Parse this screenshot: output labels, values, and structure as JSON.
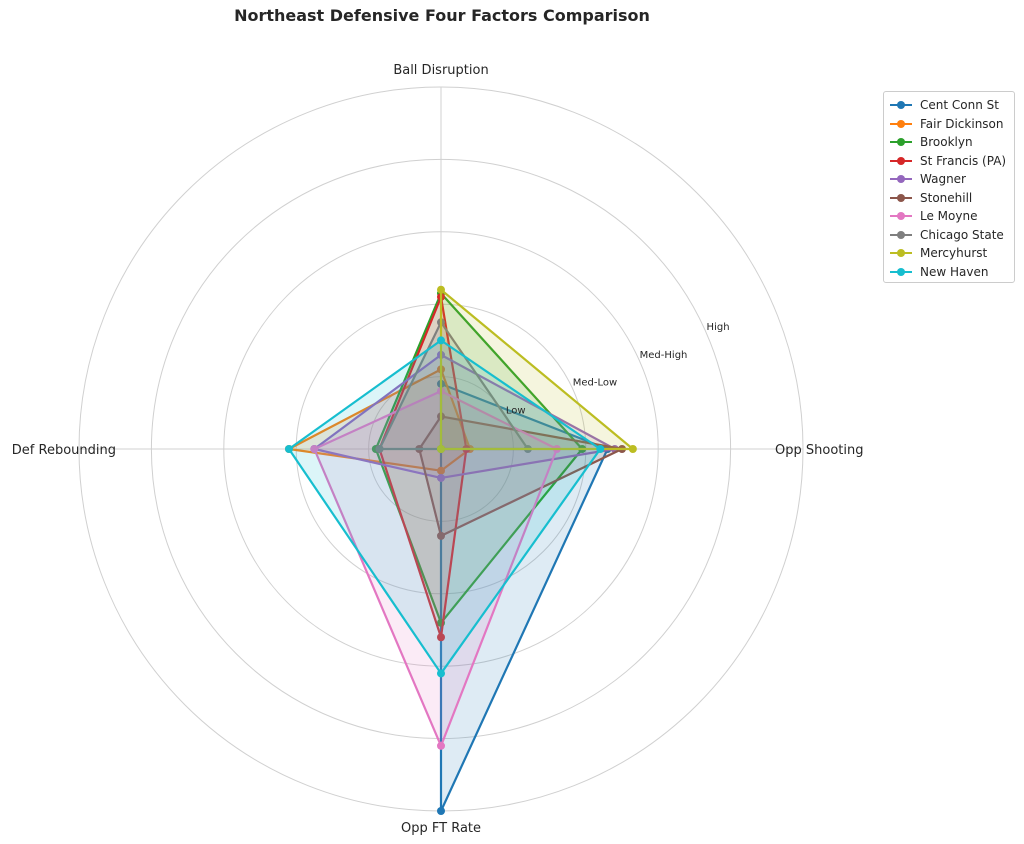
{
  "chart_data": {
    "type": "radar",
    "title": "Northeast Defensive Four Factors Comparison",
    "axes": [
      "Ball Disruption",
      "Opp Shooting",
      "Opp FT Rate",
      "Def Rebounding"
    ],
    "rmax": 5,
    "rings": [
      1,
      2,
      3,
      4,
      5
    ],
    "ring_labels": [
      "Low",
      "Med-Low",
      "Med-High",
      "High"
    ],
    "ring_label_values": [
      1,
      2,
      3,
      4
    ],
    "grid": true,
    "legend_position": "upper-right outside",
    "series": [
      {
        "name": "Cent Conn St",
        "color": "#1f77b4",
        "values": [
          0.9,
          2.3,
          5.0,
          0.0
        ]
      },
      {
        "name": "Fair Dickinson",
        "color": "#ff7f0e",
        "values": [
          1.1,
          0.4,
          0.3,
          2.1
        ]
      },
      {
        "name": "Brooklyn",
        "color": "#2ca02c",
        "values": [
          2.15,
          1.95,
          2.4,
          0.9
        ]
      },
      {
        "name": "St Francis (PA)",
        "color": "#d62728",
        "values": [
          2.1,
          0.35,
          2.6,
          0.85
        ]
      },
      {
        "name": "Wagner",
        "color": "#9467bd",
        "values": [
          1.3,
          2.4,
          0.4,
          1.75
        ]
      },
      {
        "name": "Stonehill",
        "color": "#8c564b",
        "values": [
          0.45,
          2.5,
          1.2,
          0.3
        ]
      },
      {
        "name": "Le Moyne",
        "color": "#e377c2",
        "values": [
          0.8,
          1.6,
          4.1,
          1.75
        ]
      },
      {
        "name": "Chicago State",
        "color": "#7f7f7f",
        "values": [
          1.75,
          1.2,
          0.0,
          0.85
        ]
      },
      {
        "name": "Mercyhurst",
        "color": "#bcbd22",
        "values": [
          2.2,
          2.65,
          0.0,
          0.0
        ]
      },
      {
        "name": "New Haven",
        "color": "#17becf",
        "values": [
          1.5,
          2.2,
          3.1,
          2.1
        ]
      }
    ]
  }
}
